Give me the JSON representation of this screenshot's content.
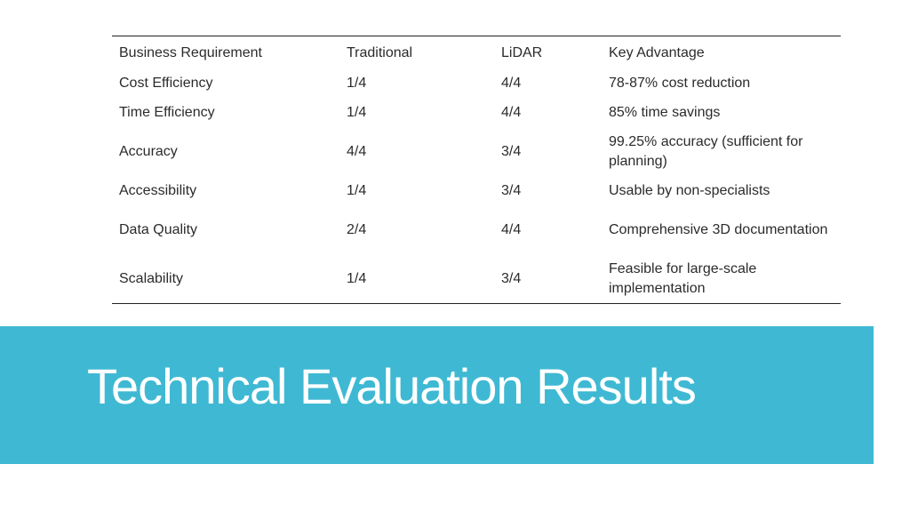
{
  "table": {
    "headers": [
      "Business Requirement",
      "Traditional",
      "LiDAR",
      "Key Advantage"
    ],
    "rows": [
      {
        "requirement": "Cost Efficiency",
        "traditional": "1/4",
        "lidar": "4/4",
        "advantage": "78-87% cost reduction"
      },
      {
        "requirement": "Time Efficiency",
        "traditional": "1/4",
        "lidar": "4/4",
        "advantage": "85% time savings"
      },
      {
        "requirement": "Accuracy",
        "traditional": "4/4",
        "lidar": "3/4",
        "advantage": "99.25% accuracy (sufficient for planning)"
      },
      {
        "requirement": "Accessibility",
        "traditional": "1/4",
        "lidar": "3/4",
        "advantage": "Usable by non-specialists"
      },
      {
        "requirement": "Data Quality",
        "traditional": "2/4",
        "lidar": "4/4",
        "advantage": "Comprehensive 3D documentation"
      },
      {
        "requirement": "Scalability",
        "traditional": "1/4",
        "lidar": "3/4",
        "advantage": "Feasible for large-scale implementation"
      }
    ]
  },
  "banner": {
    "title": "Technical Evaluation Results",
    "background_color": "#3fb9d3",
    "text_color": "#ffffff"
  }
}
